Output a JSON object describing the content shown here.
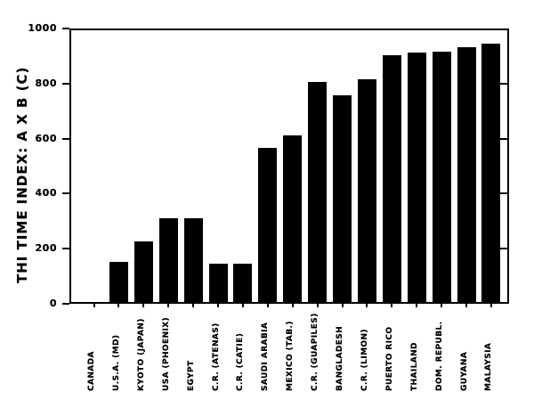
{
  "chart_data": {
    "type": "bar",
    "title": "",
    "xlabel": "",
    "ylabel": "THI TIME INDEX: A X B (C)",
    "ylim": [
      0,
      1000
    ],
    "yticks": [
      0,
      200,
      400,
      600,
      800,
      1000
    ],
    "grid": false,
    "legend_position": "none",
    "bar_color": "#000000",
    "frame_color": "#000000",
    "background_color": "#ffffff",
    "categories": [
      "CANADA",
      "U.S.A. (MD)",
      "KYOTO (JAPAN)",
      "USA (PHOENIX)",
      "EGYPT",
      "C.R. (ATENAS)",
      "C.R. (CATIE)",
      "SAUDI ARABIA",
      "MEXICO (TAB.)",
      "C.R. (GUAPILES)",
      "BANGLADESH",
      "C.R. (LIMON)",
      "PUERTO RICO",
      "THAILAND",
      "DOM. REPUBL.",
      "GUYANA",
      "MALAYSIA"
    ],
    "values": [
      0,
      145,
      220,
      305,
      305,
      140,
      140,
      560,
      605,
      800,
      750,
      810,
      895,
      905,
      910,
      925,
      940
    ]
  }
}
